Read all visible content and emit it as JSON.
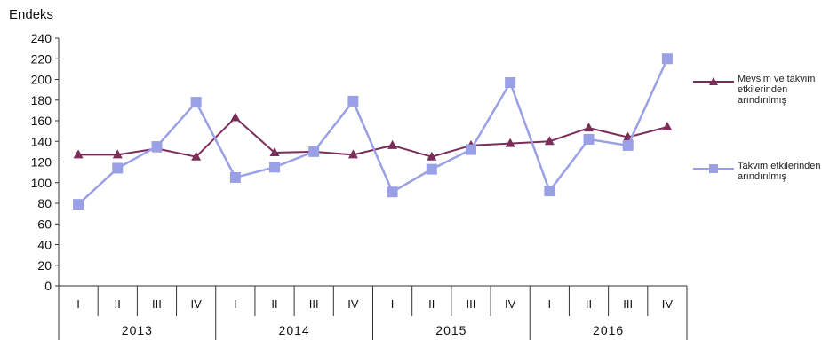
{
  "chart_data": {
    "type": "line",
    "ylabel": "Endeks",
    "ylim": [
      0,
      240
    ],
    "yticks": [
      0,
      20,
      40,
      60,
      80,
      100,
      120,
      140,
      160,
      180,
      200,
      220,
      240
    ],
    "grid": false,
    "legend_position": "right",
    "categories": [
      "I",
      "II",
      "III",
      "IV",
      "I",
      "II",
      "III",
      "IV",
      "I",
      "II",
      "III",
      "IV",
      "I",
      "II",
      "III",
      "IV"
    ],
    "years": [
      "2013",
      "2014",
      "2015",
      "2016"
    ],
    "series": [
      {
        "name": "Mevsim ve takvim etkilerinden arındırılmış",
        "color": "#7b2d5a",
        "marker": "triangle",
        "values": [
          127,
          127,
          133,
          125,
          163,
          129,
          130,
          127,
          136,
          125,
          136,
          138,
          140,
          153,
          144,
          154
        ]
      },
      {
        "name": "Takvim etkilerinden arındırılmış",
        "color": "#9aa0e6",
        "marker": "square",
        "values": [
          79,
          114,
          135,
          178,
          105,
          115,
          130,
          179,
          91,
          113,
          132,
          197,
          92,
          142,
          136,
          220
        ]
      }
    ]
  }
}
